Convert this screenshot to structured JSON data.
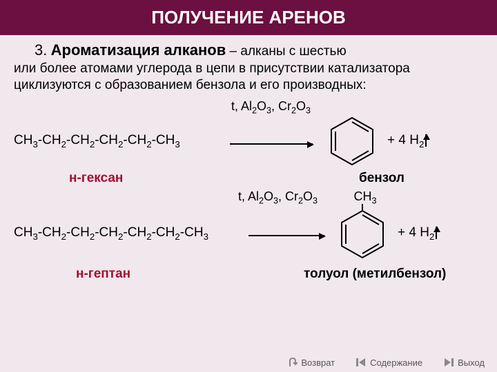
{
  "header": {
    "title": "ПОЛУЧЕНИЕ АРЕНОВ"
  },
  "intro": {
    "num": "3.",
    "title": "Ароматизация алканов",
    "dash": "–",
    "text1": "алканы с шестью",
    "text2": "или более атомами углерода в цепи в присутствии катализатора циклизуются с образованием бензола и его производных:"
  },
  "rxn1": {
    "cond_html": "t, Al<sub>2</sub>O<sub>3</sub>, Cr<sub>2</sub>O<sub>3</sub>",
    "reactant_html": "CH<sub>3</sub>-CH<sub>2</sub>-CH<sub>2</sub>-CH<sub>2</sub>-CH<sub>2</sub>-CH<sub>3</sub>",
    "product_tail_html": "+  4  H<sub>2</sub>",
    "reactant_label": "н-гексан",
    "product_label": "бензол"
  },
  "rxn2": {
    "cond_html": "t, Al<sub>2</sub>O<sub>3</sub>, Cr<sub>2</sub>O<sub>3</sub>",
    "substituent_html": "CH<sub>3</sub>",
    "reactant_html": "CH<sub>3</sub>-CH<sub>2</sub>-CH<sub>2</sub>-CH<sub>2</sub>-CH<sub>2</sub>-CH<sub>2</sub>-CH<sub>3</sub>",
    "product_tail_html": "+  4  H<sub>2</sub>",
    "reactant_label": "н-гептан",
    "product_label": "толуол (метилбензол)"
  },
  "footer": {
    "back": "Возврат",
    "contents": "Содержание",
    "exit": "Выход"
  },
  "colors": {
    "header_bg": "#6b1040",
    "label_red": "#a01030",
    "bg": "#f0e8ed"
  }
}
